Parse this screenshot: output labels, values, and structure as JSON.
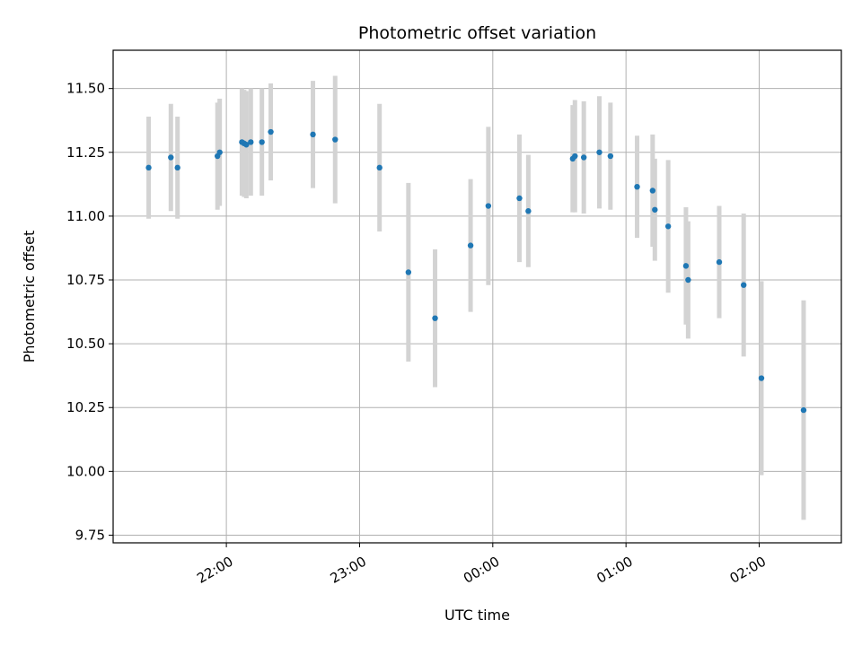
{
  "chart_data": {
    "type": "scatter",
    "title": "Photometric offset variation",
    "xlabel": "UTC time",
    "ylabel": "Photometric offset",
    "x_axis": "time (UTC)",
    "xlim": [
      "21:09",
      "02:37"
    ],
    "ylim": [
      9.72,
      11.65
    ],
    "grid": true,
    "x_ticks": [
      "22:00",
      "23:00",
      "00:00",
      "01:00",
      "02:00"
    ],
    "y_ticks": [
      "9.75",
      "10.00",
      "10.25",
      "10.50",
      "10.75",
      "11.00",
      "11.25",
      "11.50"
    ],
    "colors": {
      "marker": "#1f77b4",
      "errorbar": "#d3d3d3",
      "grid": "#b0b0b0"
    },
    "points": [
      {
        "x": "21:25",
        "y": 11.19,
        "err": 0.2
      },
      {
        "x": "21:35",
        "y": 11.23,
        "err": 0.21
      },
      {
        "x": "21:38",
        "y": 11.19,
        "err": 0.2
      },
      {
        "x": "21:56",
        "y": 11.235,
        "err": 0.21
      },
      {
        "x": "21:57",
        "y": 11.25,
        "err": 0.21
      },
      {
        "x": "22:07",
        "y": 11.29,
        "err": 0.21
      },
      {
        "x": "22:08",
        "y": 11.285,
        "err": 0.21
      },
      {
        "x": "22:09",
        "y": 11.28,
        "err": 0.21
      },
      {
        "x": "22:11",
        "y": 11.29,
        "err": 0.21
      },
      {
        "x": "22:16",
        "y": 11.29,
        "err": 0.21
      },
      {
        "x": "22:20",
        "y": 11.33,
        "err": 0.19
      },
      {
        "x": "22:39",
        "y": 11.32,
        "err": 0.21
      },
      {
        "x": "22:49",
        "y": 11.3,
        "err": 0.25
      },
      {
        "x": "23:09",
        "y": 11.19,
        "err": 0.25
      },
      {
        "x": "23:22",
        "y": 10.78,
        "err": 0.35
      },
      {
        "x": "23:34",
        "y": 10.6,
        "err": 0.27
      },
      {
        "x": "23:50",
        "y": 10.885,
        "err": 0.26
      },
      {
        "x": "23:58",
        "y": 11.04,
        "err": 0.31
      },
      {
        "x": "00:12",
        "y": 11.07,
        "err": 0.25
      },
      {
        "x": "00:16",
        "y": 11.02,
        "err": 0.22
      },
      {
        "x": "00:36",
        "y": 11.225,
        "err": 0.21
      },
      {
        "x": "00:37",
        "y": 11.235,
        "err": 0.22
      },
      {
        "x": "00:41",
        "y": 11.23,
        "err": 0.22
      },
      {
        "x": "00:48",
        "y": 11.25,
        "err": 0.22
      },
      {
        "x": "00:53",
        "y": 11.235,
        "err": 0.21
      },
      {
        "x": "01:05",
        "y": 11.115,
        "err": 0.2
      },
      {
        "x": "01:12",
        "y": 11.1,
        "err": 0.22
      },
      {
        "x": "01:13",
        "y": 11.025,
        "err": 0.2
      },
      {
        "x": "01:19",
        "y": 10.96,
        "err": 0.26
      },
      {
        "x": "01:27",
        "y": 10.805,
        "err": 0.23
      },
      {
        "x": "01:28",
        "y": 10.75,
        "err": 0.23
      },
      {
        "x": "01:42",
        "y": 10.82,
        "err": 0.22
      },
      {
        "x": "01:53",
        "y": 10.73,
        "err": 0.28
      },
      {
        "x": "02:01",
        "y": 10.365,
        "err": 0.38
      },
      {
        "x": "02:20",
        "y": 10.24,
        "err": 0.43
      }
    ]
  }
}
